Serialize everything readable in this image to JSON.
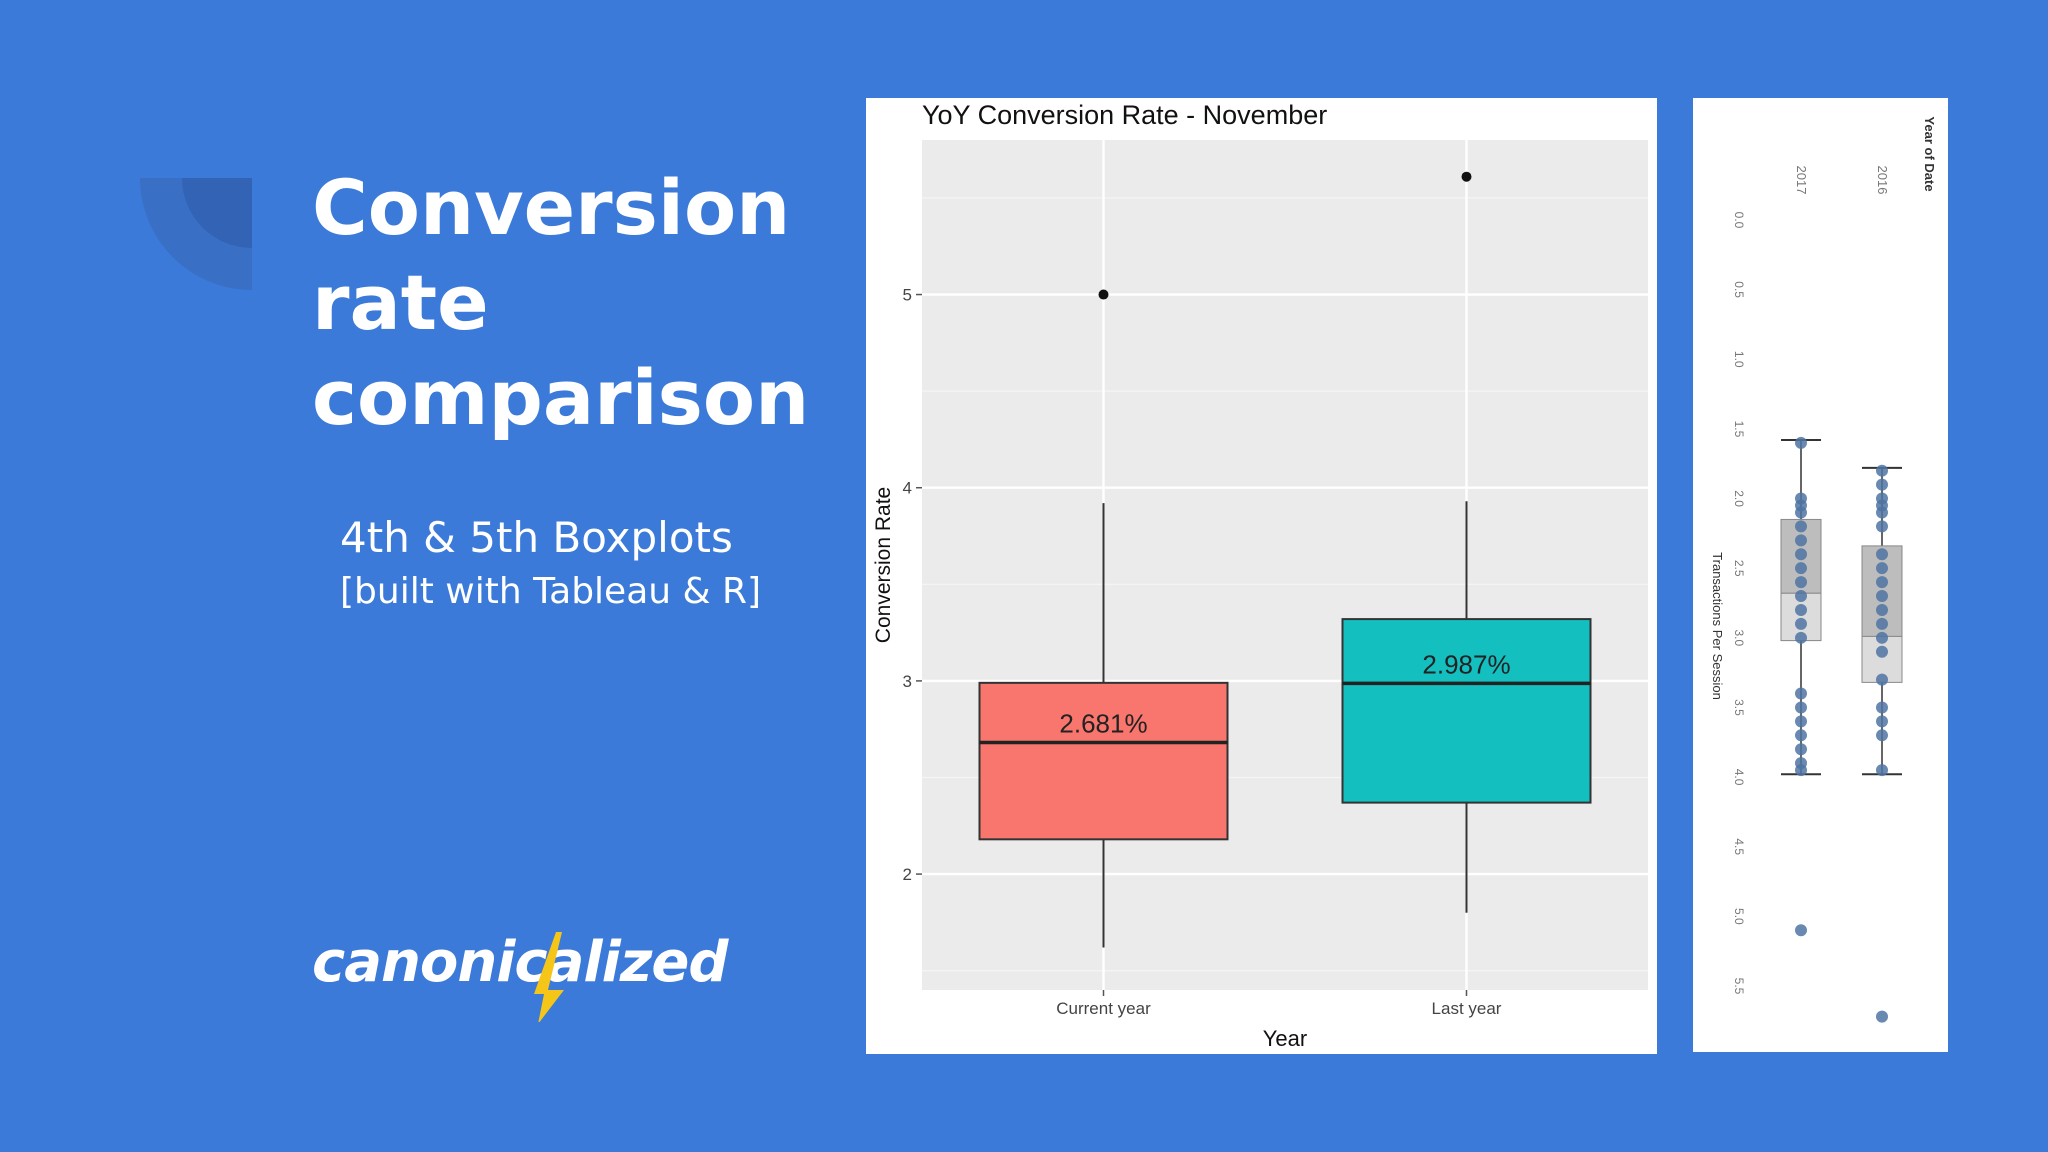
{
  "slide": {
    "title_lines": [
      "Conversion",
      "rate",
      "comparison"
    ],
    "subtitle": "4th & 5th Boxplots",
    "subtitle_note": "[built with Tableau & R]",
    "logo_text": "canonicalized",
    "colors": {
      "background": "#3b7ad9",
      "logo_accent": "#f5c518"
    }
  },
  "chart_data": [
    {
      "type": "boxplot",
      "title": "YoY Conversion Rate - November",
      "xlabel": "Year",
      "ylabel": "Conversion Rate",
      "categories": [
        "Current year",
        "Last year"
      ],
      "y_ticks": [
        2,
        3,
        4,
        5
      ],
      "ylim": [
        1.4,
        5.8
      ],
      "grid": true,
      "boxes": [
        {
          "category": "Current year",
          "min": 1.62,
          "q1": 2.18,
          "median": 2.681,
          "q3": 2.99,
          "max": 3.92,
          "outliers": [
            5.0
          ],
          "label": "2.681%",
          "color": "#f8766d"
        },
        {
          "category": "Last year",
          "min": 1.8,
          "q1": 2.37,
          "median": 2.987,
          "q3": 3.32,
          "max": 3.93,
          "outliers": [
            5.61
          ],
          "label": "2.987%",
          "color": "#13bfbf"
        }
      ]
    },
    {
      "type": "boxplot",
      "orientation": "rotated",
      "xlabel": "Year of Date",
      "ylabel": "Transactions Per Session",
      "categories": [
        "2017",
        "2016"
      ],
      "y_ticks": [
        "0.0",
        "0.5",
        "1.0",
        "1.5",
        "2.0",
        "2.5",
        "3.0",
        "3.5",
        "4.0",
        "4.5",
        "5.0",
        "5.5"
      ],
      "boxes": [
        {
          "category": "2017",
          "min": 1.58,
          "q1": 2.15,
          "median": 2.68,
          "q3": 3.02,
          "max": 3.98,
          "points": [
            1.6,
            2.0,
            2.05,
            2.1,
            2.2,
            2.3,
            2.4,
            2.5,
            2.6,
            2.7,
            2.8,
            2.9,
            3.0,
            3.4,
            3.5,
            3.6,
            3.7,
            3.8,
            3.9,
            3.95,
            5.1
          ]
        },
        {
          "category": "2016",
          "min": 1.78,
          "q1": 2.34,
          "median": 2.99,
          "q3": 3.32,
          "max": 3.98,
          "points": [
            1.8,
            1.9,
            2.0,
            2.05,
            2.1,
            2.2,
            2.4,
            2.5,
            2.6,
            2.7,
            2.8,
            2.9,
            3.0,
            3.1,
            3.3,
            3.5,
            3.6,
            3.7,
            3.95,
            5.72
          ]
        }
      ]
    }
  ]
}
